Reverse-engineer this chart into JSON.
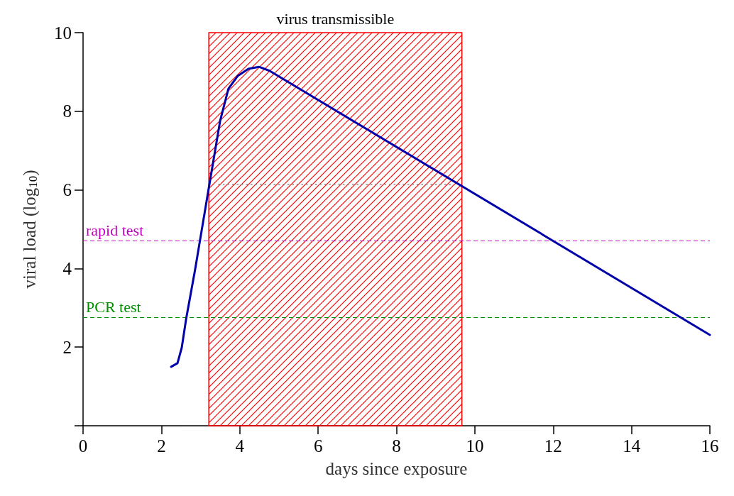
{
  "chart_data": {
    "type": "line",
    "xlabel": "days since exposure",
    "ylabel": "viral load (log$_{10}$)",
    "xlim": [
      0,
      16
    ],
    "xticks": [
      0,
      2,
      4,
      6,
      8,
      10,
      12,
      14,
      16
    ],
    "ylim": [
      0,
      10
    ],
    "yticks": [
      {
        "value": 0,
        "label": null
      },
      2,
      4,
      6,
      8,
      10
    ],
    "grid": false,
    "marker": "none",
    "series": [
      {
        "color": "#0000aa",
        "line_style": "solid",
        "x": [
          2.25,
          2.41,
          2.52,
          2.63,
          2.86,
          3.21,
          3.5,
          3.71,
          3.95,
          4.22,
          4.49,
          4.76,
          5.13,
          16
        ],
        "values": [
          1.5,
          1.59,
          1.99,
          2.71,
          3.97,
          6.05,
          7.76,
          8.57,
          8.9,
          9.08,
          9.13,
          9.03,
          8.81,
          2.31
        ]
      },
      {
        "color": "#888888",
        "line_style": "dotted",
        "x": [
          3.46,
          9.42
        ],
        "values": [
          6.14,
          6.14
        ]
      }
    ],
    "ref_lines": [
      {
        "axis": "y",
        "value": 4.7,
        "label": "rapid test",
        "color": "#c000c0",
        "line_style": "dashed"
      },
      {
        "axis": "y",
        "value": 2.75,
        "label": "PCR test",
        "color": "#009000",
        "line_style": "dashed"
      }
    ],
    "bands": [
      {
        "axis": "x",
        "from": 3.21,
        "to": 9.67,
        "label": "virus transmissible",
        "color": "#ff0000"
      }
    ]
  }
}
